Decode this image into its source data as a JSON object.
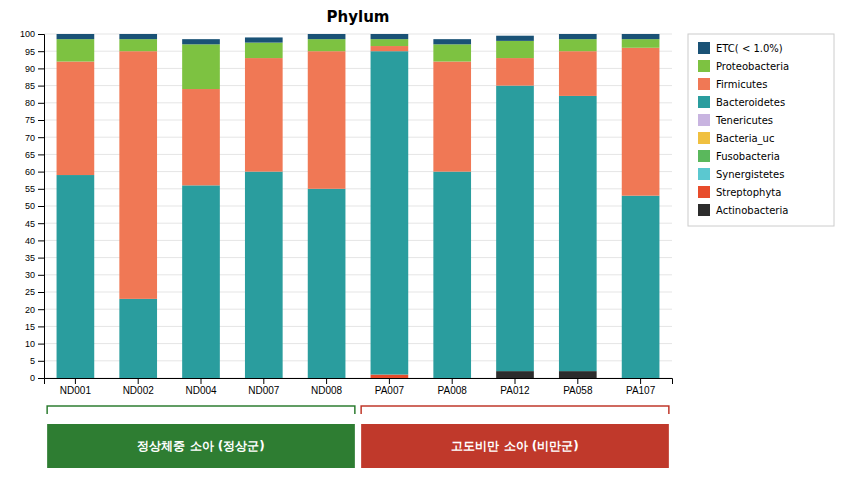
{
  "chart_data": {
    "type": "bar",
    "stacked": true,
    "title": "Phylum",
    "categories": [
      "ND001",
      "ND002",
      "ND004",
      "ND007",
      "ND008",
      "PA007",
      "PA008",
      "PA012",
      "PA058",
      "PA107"
    ],
    "series": [
      {
        "name": "Actinobacteria",
        "color": "#2c2c2c",
        "values": [
          0,
          0,
          0,
          0,
          0,
          0,
          0,
          2.0,
          2.0,
          0
        ]
      },
      {
        "name": "Streptophyta",
        "color": "#e84c2b",
        "values": [
          0,
          0,
          0,
          0,
          0,
          1.0,
          0,
          0,
          0,
          0
        ]
      },
      {
        "name": "Synergistetes",
        "color": "#5bc8d0",
        "values": [
          0,
          0,
          0,
          0,
          0,
          0,
          0,
          0,
          0,
          0
        ]
      },
      {
        "name": "Fusobacteria",
        "color": "#5ab85c",
        "values": [
          0,
          0,
          0,
          0,
          0,
          0,
          0,
          0,
          0,
          0
        ]
      },
      {
        "name": "Bacteria_uc",
        "color": "#f0c040",
        "values": [
          0,
          0,
          0,
          0,
          0,
          0,
          0,
          0,
          0,
          0
        ]
      },
      {
        "name": "Tenericutes",
        "color": "#c8b4e0",
        "values": [
          0,
          0,
          0,
          0,
          0,
          0,
          0,
          0,
          0,
          0
        ]
      },
      {
        "name": "Bacteroidetes",
        "color": "#2a9d9e",
        "values": [
          59,
          23,
          56,
          60,
          55,
          94,
          60,
          83,
          80,
          53
        ]
      },
      {
        "name": "Firmicutes",
        "color": "#f07855",
        "values": [
          33,
          72,
          28,
          33,
          40,
          1.5,
          32,
          8,
          13,
          43
        ]
      },
      {
        "name": "Proteobacteria",
        "color": "#7dc241",
        "values": [
          6.5,
          3.5,
          13,
          4.5,
          3.5,
          2.0,
          5,
          5,
          3.5,
          2.5
        ]
      },
      {
        "name": "ETC( < 1.0%)",
        "color": "#1a5276",
        "values": [
          1.5,
          1.5,
          1.5,
          1.5,
          1.5,
          1.5,
          1.5,
          1.5,
          1.5,
          1.5
        ]
      }
    ],
    "ylim": [
      0,
      100
    ],
    "yticks": [
      0,
      5,
      10,
      15,
      20,
      25,
      30,
      35,
      40,
      45,
      50,
      55,
      60,
      65,
      70,
      75,
      80,
      85,
      90,
      95,
      100
    ],
    "grid": true,
    "legend": "right",
    "annotations": [
      {
        "text": "정상체중 소아 (정상군)",
        "color": "#2e7d32",
        "from": "ND001",
        "to": "ND008"
      },
      {
        "text": "고도비만 소아 (비만군)",
        "color": "#c0392b",
        "from": "PA007",
        "to": "PA107"
      }
    ]
  }
}
